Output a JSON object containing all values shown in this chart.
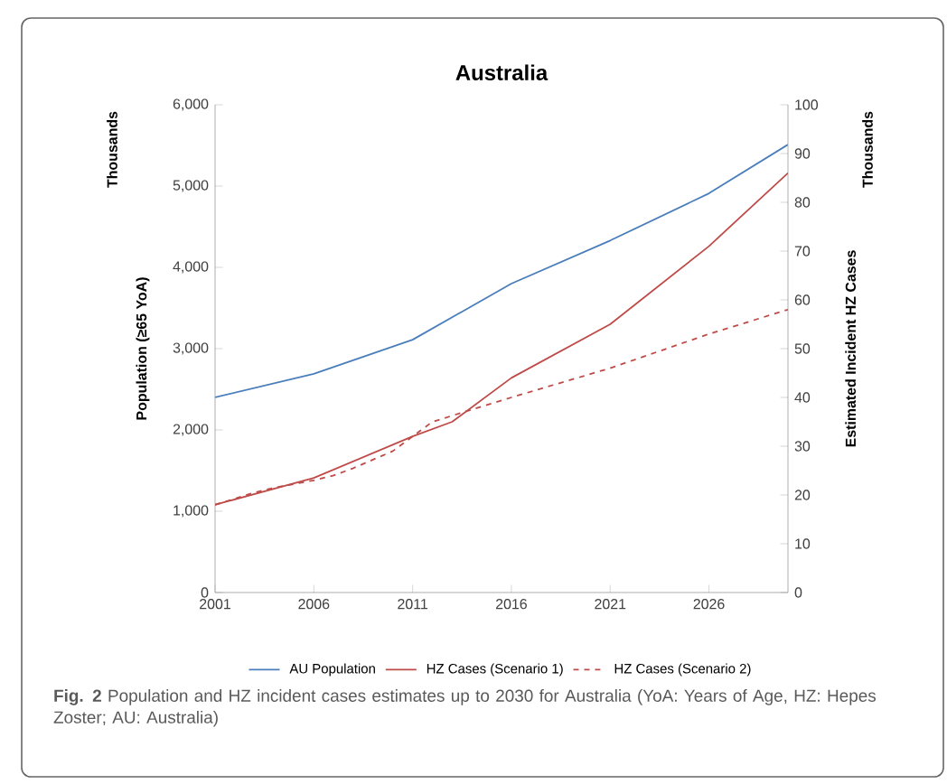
{
  "chart_data": {
    "type": "line",
    "title": "Australia",
    "ylabel": "Population (≥65 YoA)",
    "y2label": "Estimated Incident HZ Cases",
    "x": [
      2001,
      2006,
      2011,
      2016,
      2021,
      2026,
      2030
    ],
    "series": [
      {
        "name": "AU Population",
        "color": "#4a7ebb",
        "values": [
          2400,
          2690,
          3110,
          3800,
          4330,
          4910,
          5510
        ]
      },
      {
        "name": "HZ Cases (Scenario 1)",
        "color": "#be4b48",
        "axis": "y2",
        "x": [
          2001,
          2006,
          2011,
          2013,
          2016,
          2021,
          2026,
          2030
        ],
        "values": [
          18,
          23.5,
          32,
          35,
          44,
          55,
          71,
          86
        ]
      },
      {
        "name": "HZ Cases (Scenario 2)",
        "color": "#be4b48",
        "axis": "y2",
        "line_style": "dashed",
        "x": [
          2001,
          2003,
          2004,
          2006,
          2007,
          2008,
          2010,
          2011,
          2012,
          2016,
          2021,
          2026,
          2030
        ],
        "values": [
          18,
          20.5,
          21.5,
          23,
          24,
          25.5,
          29,
          32,
          35,
          40,
          46,
          53,
          58
        ]
      }
    ],
    "xlim": [
      2001,
      2030
    ],
    "xticks": [
      2001,
      2006,
      2011,
      2016,
      2021,
      2026
    ],
    "ylim": [
      0,
      6000
    ],
    "yticks": [
      {
        "value": 0,
        "label": "0"
      },
      {
        "value": 1000,
        "label": "1,000"
      },
      {
        "value": 2000,
        "label": "2,000"
      },
      {
        "value": 3000,
        "label": "3,000"
      },
      {
        "value": 4000,
        "label": "4,000"
      },
      {
        "value": 5000,
        "label": "5,000"
      },
      {
        "value": 6000,
        "label": "6,000"
      }
    ],
    "y2lim": [
      0,
      100
    ],
    "y2ticks": [
      0,
      10,
      20,
      30,
      40,
      50,
      60,
      70,
      80,
      90,
      100
    ],
    "legend": "bottom",
    "annotations": [
      "Thousands",
      "Thousands",
      "**Fig. 2** Population and HZ incident cases estimates up to 2030 for Australia (YoA: Years of Age, HZ: Hepes Zoster; AU: Australia)"
    ]
  }
}
